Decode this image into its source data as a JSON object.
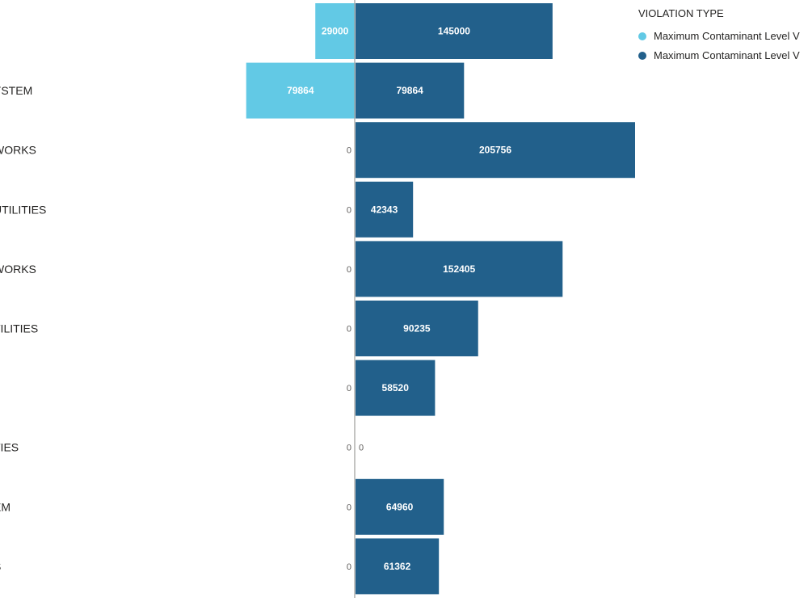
{
  "chart_data": {
    "type": "bar",
    "orientation": "horizontal-diverging",
    "legend_title": "VIOLATION TYPE",
    "legend_placement": "top-right",
    "categories": [
      "",
      "YSTEM",
      "WORKS",
      "UTILITIES",
      "WORKS",
      "TILITIES",
      "",
      "TIES",
      "EM",
      "S"
    ],
    "series": [
      {
        "name": "Maximum Contaminant Level V",
        "color": "#62C9E5",
        "direction": "left",
        "values": [
          29000,
          79864,
          0,
          0,
          0,
          0,
          0,
          0,
          0,
          0
        ],
        "labels": [
          "29000",
          "79864",
          "0",
          "0",
          "0",
          "0",
          "0",
          "0",
          "0",
          "0"
        ]
      },
      {
        "name": "Maximum Contaminant Level V",
        "color": "#22608B",
        "direction": "right",
        "values": [
          145000,
          79864,
          205756,
          42343,
          152405,
          90235,
          58520,
          0,
          64960,
          61362
        ],
        "labels": [
          "145000",
          "79864",
          "205756",
          "42343",
          "152405",
          "90235",
          "58520",
          "0",
          "64960",
          "61362"
        ]
      }
    ],
    "axis_color": "#8a8886"
  }
}
